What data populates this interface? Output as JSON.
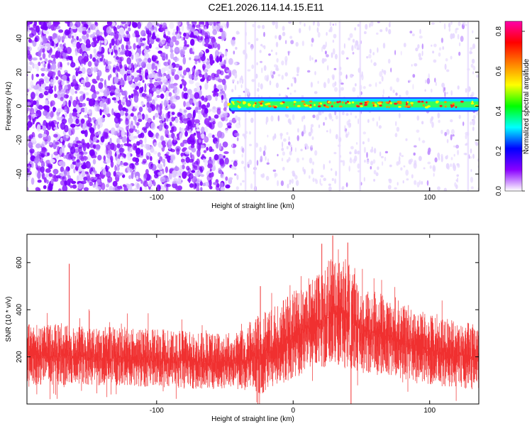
{
  "title": "C2E1.2026.114.14.15.E11",
  "chart_data": [
    {
      "type": "heatmap",
      "xlabel": "Height of straight line (km)",
      "ylabel": "Frequency (Hz)",
      "xlim": [
        -195,
        136
      ],
      "ylim": [
        -50,
        50
      ],
      "x_ticks": [
        -100,
        0,
        100
      ],
      "y_ticks": [
        -40,
        -20,
        0,
        20,
        40
      ],
      "colorbar": {
        "label": "Normalized spectral amplitude",
        "range": [
          0,
          0.85
        ],
        "ticks": [
          "0.0",
          "0.2",
          "0.4",
          "0.6",
          "0.8"
        ],
        "colors": [
          "#ffffff",
          "#8a00ff",
          "#0000ff",
          "#00ffff",
          "#00ff00",
          "#ffff00",
          "#ff8000",
          "#ff0000",
          "#ff00aa"
        ]
      },
      "features": {
        "noise_region_x": [
          -195,
          -45
        ],
        "noise_color": "#7a00ff",
        "sparse_region_x": [
          -45,
          136
        ],
        "signal_band": {
          "x_start": -47,
          "x_end": 136,
          "frequency_center": 1,
          "frequency_halfwidth": 3
        }
      }
    },
    {
      "type": "line",
      "xlabel": "Height of straight line (km)",
      "ylabel": "SNR (10 * v/v)",
      "xlim": [
        -195,
        136
      ],
      "ylim": [
        0,
        720
      ],
      "x_ticks": [
        -100,
        0,
        100
      ],
      "y_ticks": [
        200,
        400,
        600
      ],
      "color": "#f03030",
      "envelope": {
        "x": [
          -195,
          -150,
          -100,
          -60,
          -40,
          -25,
          -10,
          0,
          20,
          30,
          40,
          50,
          70,
          100,
          136
        ],
        "lower": [
          80,
          80,
          70,
          60,
          60,
          40,
          80,
          110,
          150,
          160,
          150,
          130,
          120,
          80,
          60
        ],
        "upper": [
          340,
          330,
          320,
          300,
          310,
          380,
          430,
          480,
          560,
          640,
          620,
          500,
          460,
          380,
          340
        ]
      },
      "peaks": [
        {
          "x": 29,
          "y": 715
        },
        {
          "x": -164,
          "y": 595
        },
        {
          "x": 40,
          "y": 685
        },
        {
          "x": 21,
          "y": 680
        },
        {
          "x": -24,
          "y": 500
        }
      ]
    }
  ]
}
